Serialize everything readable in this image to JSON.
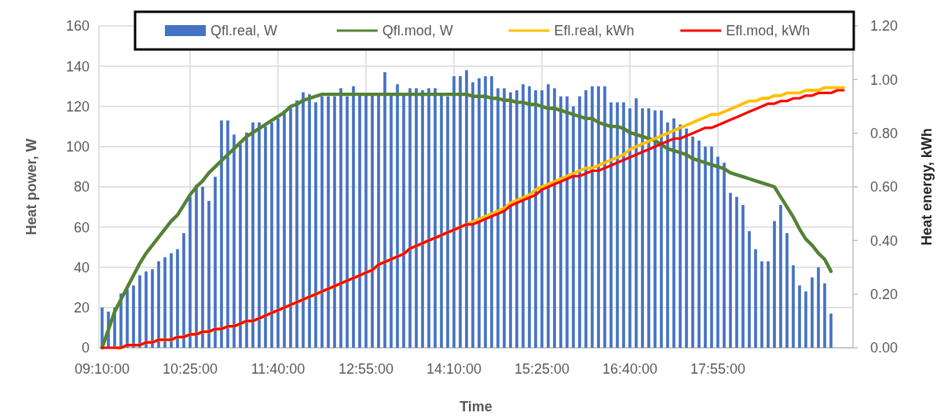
{
  "chart_data": {
    "type": "bar",
    "xlabel": "Time",
    "ylabel": "Heat power, W",
    "y2label": "Heat energy, kWh",
    "categories": [
      "09:10:00",
      null,
      null,
      null,
      null,
      null,
      null,
      null,
      null,
      null,
      null,
      null,
      null,
      null,
      "10:25:00",
      null,
      null,
      null,
      null,
      null,
      null,
      null,
      null,
      null,
      null,
      null,
      null,
      null,
      "11:40:00",
      null,
      null,
      null,
      null,
      null,
      null,
      null,
      null,
      null,
      null,
      null,
      null,
      null,
      "12:55:00",
      null,
      null,
      null,
      null,
      null,
      null,
      null,
      null,
      null,
      null,
      null,
      null,
      null,
      "14:10:00",
      null,
      null,
      null,
      null,
      null,
      null,
      null,
      null,
      null,
      null,
      null,
      null,
      null,
      "15:25:00",
      null,
      null,
      null,
      null,
      null,
      null,
      null,
      null,
      null,
      null,
      null,
      null,
      null,
      "16:40:00",
      null,
      null,
      null,
      null,
      null,
      null,
      null,
      null,
      null,
      null,
      null,
      null,
      null,
      "17:55:00",
      null,
      null,
      null,
      null,
      null,
      null,
      null,
      null,
      null,
      null,
      null,
      null,
      null,
      null,
      null,
      null,
      null,
      null,
      null,
      null,
      null
    ],
    "ylim": [
      0,
      160
    ],
    "yticks": [
      0,
      20,
      40,
      60,
      80,
      100,
      120,
      140,
      160
    ],
    "y2lim": [
      0,
      1.2
    ],
    "y2ticks": [
      {
        "value": 0,
        "label": "0.00"
      },
      {
        "value": 0.2,
        "label": "0.20"
      },
      {
        "value": 0.4,
        "label": "0.40"
      },
      {
        "value": 0.6,
        "label": "0.60"
      },
      {
        "value": 0.8,
        "label": "0.80"
      },
      {
        "value": 1.0,
        "label": "1.00"
      },
      {
        "value": 1.2,
        "label": "1.20"
      }
    ],
    "grid": true,
    "legend": "top",
    "marker": "none",
    "line_style": "solid",
    "series": [
      {
        "name": "Qfl.real, W",
        "color": "#4472c4",
        "values": [
          20,
          18,
          20,
          27,
          29,
          31,
          36,
          38,
          39,
          43,
          45,
          47,
          49,
          57,
          75,
          81,
          80,
          73,
          85,
          113,
          113,
          106,
          101,
          107,
          112,
          112,
          110,
          112,
          114,
          118,
          120,
          123,
          127,
          126,
          122,
          125,
          125,
          125,
          129,
          125,
          130,
          126,
          126,
          126,
          126,
          137,
          126,
          131,
          126,
          129,
          129,
          128,
          129,
          129,
          126,
          125,
          135,
          135,
          138,
          132,
          134,
          135,
          135,
          129,
          129,
          127,
          128,
          131,
          130,
          128,
          128,
          131,
          129,
          125,
          125,
          120,
          125,
          128,
          130,
          130,
          130,
          122,
          122,
          122,
          119,
          124,
          119,
          119,
          118,
          118,
          112,
          114,
          111,
          109,
          105,
          103,
          100,
          100,
          95,
          92,
          77,
          75,
          71,
          58,
          49,
          43,
          43,
          63,
          71,
          57,
          41,
          31,
          28,
          35,
          40,
          32,
          17,
          null,
          null,
          null
        ]
      },
      {
        "name": "Qfl.mod, W",
        "type": "line",
        "color": "#548235",
        "values": [
          0,
          9,
          18,
          24,
          30,
          36,
          42,
          47,
          51,
          55,
          59,
          63,
          66,
          71,
          76,
          80,
          83,
          87,
          90,
          93,
          96,
          99,
          102,
          105,
          107,
          109,
          111,
          113,
          115,
          117,
          120,
          121,
          123,
          124,
          125,
          126,
          126,
          126,
          126,
          126,
          126,
          126,
          126,
          126,
          126,
          126,
          126,
          126,
          126,
          126,
          126,
          126,
          126,
          126,
          126,
          126,
          126,
          126,
          126,
          125,
          125,
          125,
          124,
          124,
          123,
          123,
          122,
          122,
          121,
          121,
          120,
          119,
          119,
          118,
          117,
          116,
          115,
          114,
          114,
          112,
          111,
          110,
          110,
          109,
          107,
          106,
          105,
          104,
          103,
          101,
          99,
          98,
          97,
          96,
          94,
          93,
          92,
          91,
          90,
          89,
          87,
          86,
          85,
          84,
          83,
          82,
          81,
          80,
          75,
          70,
          65,
          59,
          54,
          51,
          47,
          44,
          38,
          null,
          null,
          null
        ]
      },
      {
        "name": "Efl.real, kWh",
        "type": "line",
        "axis": "y2",
        "color": "#ffc000",
        "values": [
          null,
          null,
          0,
          0,
          0.01,
          0.01,
          0.01,
          0.02,
          0.02,
          0.03,
          0.03,
          0.03,
          0.04,
          0.04,
          0.05,
          0.05,
          0.06,
          0.06,
          0.07,
          0.07,
          0.08,
          0.08,
          0.09,
          0.1,
          0.1,
          0.11,
          0.12,
          0.13,
          0.14,
          0.15,
          0.16,
          0.17,
          0.18,
          0.19,
          0.2,
          0.21,
          0.22,
          0.23,
          0.24,
          0.25,
          0.26,
          0.27,
          0.28,
          0.29,
          0.31,
          0.32,
          0.33,
          0.34,
          0.35,
          0.37,
          0.38,
          0.39,
          0.4,
          0.41,
          0.42,
          0.43,
          0.44,
          0.45,
          0.46,
          0.47,
          0.48,
          0.49,
          0.5,
          0.51,
          0.52,
          0.54,
          0.55,
          0.56,
          0.57,
          0.59,
          0.6,
          0.61,
          0.62,
          0.63,
          0.64,
          0.65,
          0.66,
          0.67,
          0.67,
          0.68,
          0.69,
          0.7,
          0.71,
          0.72,
          0.74,
          0.75,
          0.76,
          0.77,
          0.78,
          0.79,
          0.8,
          0.81,
          0.82,
          0.83,
          0.84,
          0.85,
          0.86,
          0.87,
          0.87,
          0.88,
          0.89,
          0.9,
          0.91,
          0.92,
          0.92,
          0.93,
          0.93,
          0.94,
          0.94,
          0.95,
          0.95,
          0.95,
          0.96,
          0.96,
          0.96,
          0.97,
          0.97,
          0.97,
          0.97,
          null
        ]
      },
      {
        "name": "Efl.mod, kWh",
        "type": "line",
        "axis": "y2",
        "color": "#ff0000",
        "values": [
          0,
          0,
          0,
          0,
          0.01,
          0.01,
          0.01,
          0.02,
          0.02,
          0.03,
          0.03,
          0.03,
          0.04,
          0.04,
          0.05,
          0.05,
          0.06,
          0.06,
          0.07,
          0.07,
          0.08,
          0.08,
          0.09,
          0.1,
          0.1,
          0.11,
          0.12,
          0.13,
          0.14,
          0.15,
          0.16,
          0.17,
          0.18,
          0.19,
          0.2,
          0.21,
          0.22,
          0.23,
          0.24,
          0.25,
          0.26,
          0.27,
          0.28,
          0.29,
          0.31,
          0.32,
          0.33,
          0.34,
          0.35,
          0.37,
          0.38,
          0.39,
          0.4,
          0.41,
          0.42,
          0.43,
          0.44,
          0.45,
          0.46,
          0.46,
          0.47,
          0.48,
          0.49,
          0.5,
          0.51,
          0.53,
          0.54,
          0.55,
          0.56,
          0.57,
          0.59,
          0.6,
          0.61,
          0.62,
          0.63,
          0.64,
          0.64,
          0.65,
          0.66,
          0.66,
          0.67,
          0.68,
          0.69,
          0.7,
          0.71,
          0.72,
          0.73,
          0.74,
          0.75,
          0.76,
          0.77,
          0.78,
          0.78,
          0.79,
          0.8,
          0.81,
          0.82,
          0.82,
          0.83,
          0.84,
          0.85,
          0.86,
          0.87,
          0.88,
          0.89,
          0.9,
          0.91,
          0.91,
          0.92,
          0.92,
          0.93,
          0.93,
          0.94,
          0.94,
          0.95,
          0.95,
          0.95,
          0.96,
          0.96,
          null
        ]
      }
    ]
  }
}
